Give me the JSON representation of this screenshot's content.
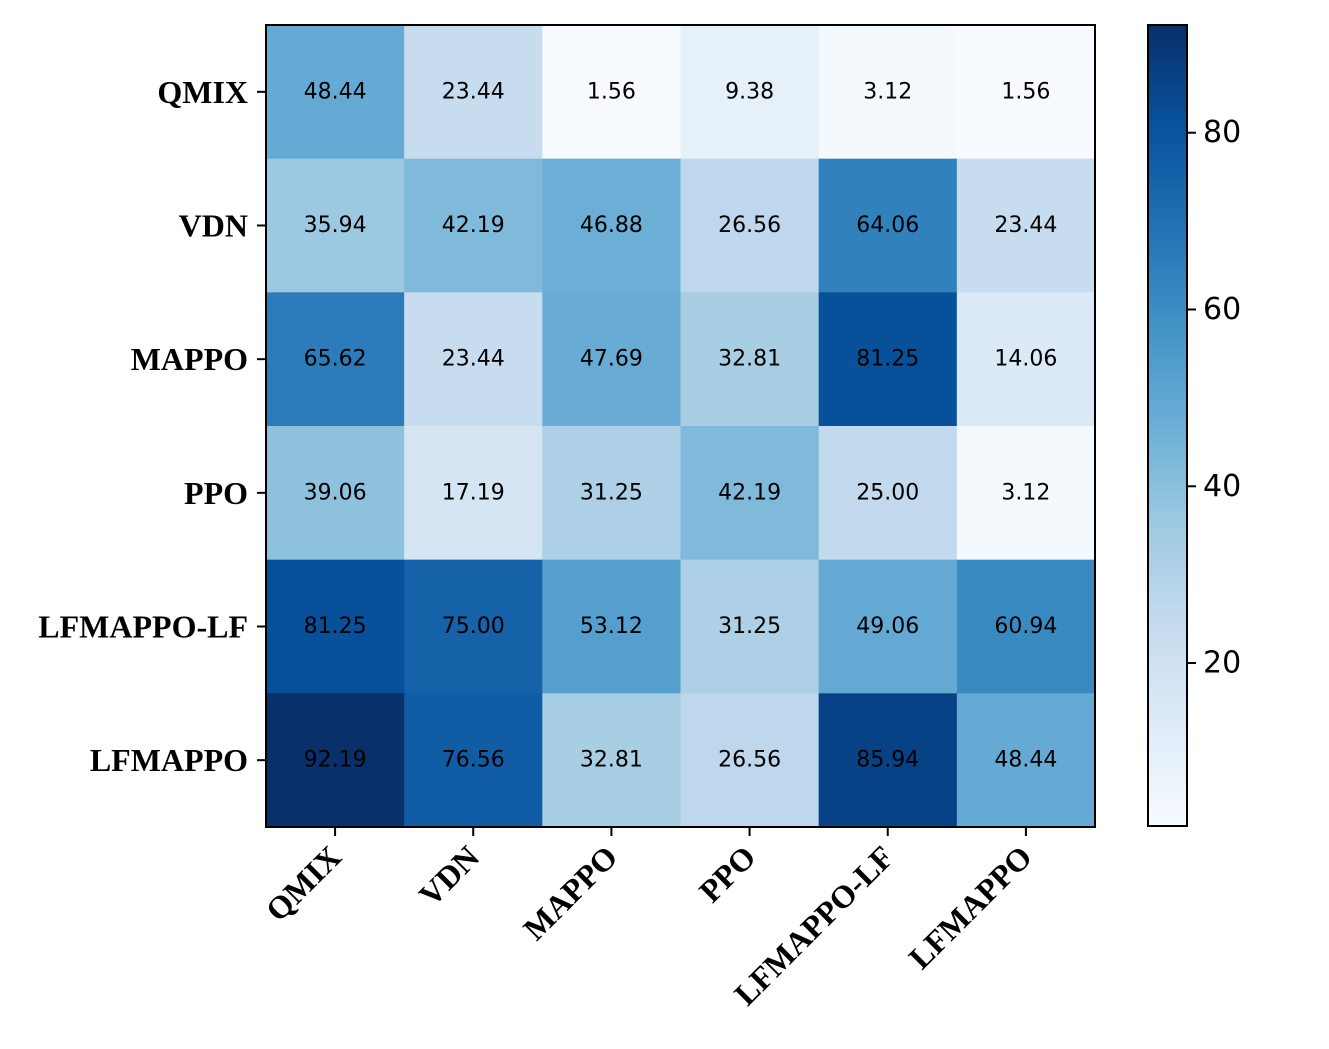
{
  "chart_data": {
    "type": "heatmap",
    "title": "",
    "xlabel": "",
    "ylabel": "",
    "rows": [
      "QMIX",
      "VDN",
      "MAPPO",
      "PPO",
      "LFMAPPO-LF",
      "LFMAPPO"
    ],
    "columns": [
      "QMIX",
      "VDN",
      "MAPPO",
      "PPO",
      "LFMAPPO-LF",
      "LFMAPPO"
    ],
    "values": [
      [
        48.44,
        23.44,
        1.56,
        9.38,
        3.12,
        1.56
      ],
      [
        35.94,
        42.19,
        46.88,
        26.56,
        64.06,
        23.44
      ],
      [
        65.62,
        23.44,
        47.69,
        32.81,
        81.25,
        14.06
      ],
      [
        39.06,
        17.19,
        31.25,
        42.19,
        25.0,
        3.12
      ],
      [
        81.25,
        75.0,
        53.12,
        31.25,
        49.06,
        60.94
      ],
      [
        92.19,
        76.56,
        32.81,
        26.56,
        85.94,
        48.44
      ]
    ],
    "value_labels": [
      [
        "48.44",
        "23.44",
        "1.56",
        "9.38",
        "3.12",
        "1.56"
      ],
      [
        "35.94",
        "42.19",
        "46.88",
        "26.56",
        "64.06",
        "23.44"
      ],
      [
        "65.62",
        "23.44",
        "47.69",
        "32.81",
        "81.25",
        "14.06"
      ],
      [
        "39.06",
        "17.19",
        "31.25",
        "42.19",
        "25.00",
        "3.12"
      ],
      [
        "81.25",
        "75.00",
        "53.12",
        "31.25",
        "49.06",
        "60.94"
      ],
      [
        "92.19",
        "76.56",
        "32.81",
        "26.56",
        "85.94",
        "48.44"
      ]
    ],
    "colormap": "Blues",
    "value_range": [
      1.56,
      92.19
    ],
    "colorbar": {
      "ticks": [
        20,
        40,
        60,
        80
      ],
      "tick_labels": [
        "20",
        "40",
        "60",
        "80"
      ]
    }
  }
}
